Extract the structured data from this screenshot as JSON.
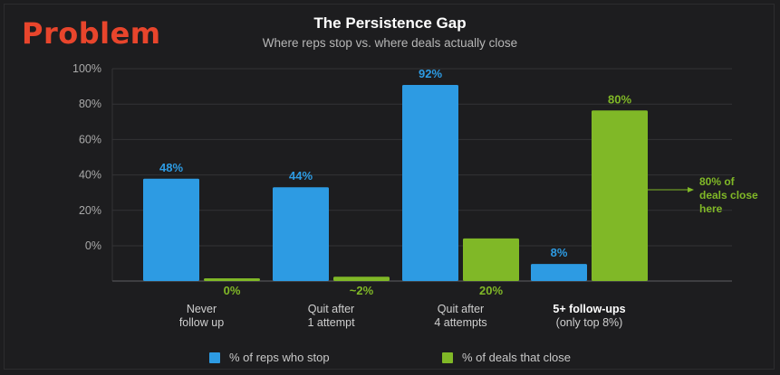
{
  "header": {
    "slide_label": "Problem"
  },
  "colors": {
    "reps": "#2d9be3",
    "deals": "#80b827",
    "problem": "#e8452c",
    "grid": "#333336",
    "axis_text": "#a9a9a9"
  },
  "chart_data": {
    "type": "bar",
    "title": "The Persistence Gap",
    "subtitle": "Where reps stop vs. where deals actually close",
    "ylim": [
      0,
      100
    ],
    "y_ticks": [
      "0%",
      "20%",
      "40%",
      "60%",
      "80%",
      "100%"
    ],
    "categories": [
      [
        "Never",
        "follow up"
      ],
      [
        "Quit after",
        "1 attempt"
      ],
      [
        "Quit after",
        "4 attempts"
      ],
      [
        "5+ follow-ups",
        "(only top 8%)"
      ]
    ],
    "series": [
      {
        "name": "% of reps who stop",
        "values": [
          48,
          44,
          92,
          8
        ],
        "labels": [
          "48%",
          "44%",
          "92%",
          "8%"
        ]
      },
      {
        "name": "% of deals that close",
        "values": [
          0,
          2,
          20,
          80
        ],
        "labels": [
          "0%",
          "~2%",
          "20%",
          "80%"
        ]
      }
    ],
    "annotation": {
      "lines": [
        "80% of",
        "deals close",
        "here"
      ]
    },
    "grid": true,
    "legend": "bottom"
  }
}
